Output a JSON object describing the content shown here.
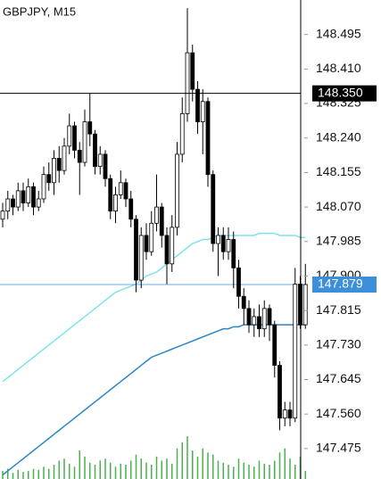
{
  "chart_data": {
    "type": "candlestick",
    "title": "GBPJPY, M15",
    "open": [
      148.04,
      148.06,
      148.09,
      148.07,
      148.11,
      148.08,
      148.12,
      148.07,
      148.09,
      148.15,
      148.13,
      148.19,
      148.16,
      148.22,
      148.27,
      148.21,
      148.18,
      148.28,
      148.25,
      148.17,
      148.2,
      148.14,
      148.06,
      148.1,
      148.13,
      148.09,
      148.04,
      147.89,
      148.0,
      147.96,
      148.03,
      148.07,
      148.0,
      147.93,
      148.02,
      148.2,
      148.3,
      148.45,
      148.36,
      148.28,
      148.33,
      148.15,
      147.98,
      148.0,
      147.96,
      147.99,
      147.92,
      147.85,
      147.82,
      147.78,
      147.8,
      147.77,
      147.82,
      147.78,
      147.68,
      147.55,
      147.57,
      147.55,
      147.88,
      147.78
    ],
    "high": [
      148.08,
      148.11,
      148.1,
      148.13,
      148.13,
      148.14,
      148.13,
      148.11,
      148.17,
      148.18,
      148.21,
      148.22,
      148.24,
      148.3,
      148.28,
      148.23,
      148.31,
      148.35,
      148.26,
      148.22,
      148.21,
      148.15,
      148.12,
      148.16,
      148.14,
      148.11,
      148.05,
      148.02,
      148.03,
      148.06,
      148.15,
      148.08,
      148.02,
      148.05,
      148.23,
      148.34,
      148.56,
      148.47,
      148.38,
      148.36,
      148.34,
      148.16,
      148.02,
      148.02,
      148.02,
      148.01,
      147.94,
      147.87,
      147.84,
      147.82,
      147.83,
      147.84,
      147.83,
      147.79,
      147.69,
      147.59,
      147.59,
      147.92,
      147.9,
      147.93
    ],
    "low": [
      148.02,
      148.04,
      148.05,
      148.06,
      148.06,
      148.07,
      148.05,
      148.06,
      148.08,
      148.11,
      148.1,
      148.13,
      148.15,
      148.2,
      148.19,
      148.1,
      148.17,
      148.22,
      148.15,
      148.15,
      148.12,
      148.04,
      148.03,
      148.09,
      148.07,
      148.02,
      147.86,
      147.87,
      147.94,
      147.95,
      148.01,
      147.97,
      147.88,
      147.91,
      148.0,
      148.18,
      148.28,
      148.33,
      148.25,
      148.2,
      148.12,
      147.96,
      147.9,
      147.94,
      147.94,
      147.87,
      147.82,
      147.78,
      147.76,
      147.75,
      147.75,
      147.75,
      147.74,
      147.65,
      147.52,
      147.53,
      147.53,
      147.54,
      147.77,
      147.77
    ],
    "close": [
      148.06,
      148.09,
      148.07,
      148.11,
      148.08,
      148.12,
      148.07,
      148.09,
      148.15,
      148.13,
      148.19,
      148.16,
      148.22,
      148.27,
      148.21,
      148.18,
      148.28,
      148.25,
      148.17,
      148.2,
      148.14,
      148.06,
      148.1,
      148.13,
      148.09,
      148.04,
      147.89,
      148.0,
      147.96,
      148.03,
      148.07,
      148.0,
      147.93,
      148.02,
      148.2,
      148.3,
      148.45,
      148.36,
      148.28,
      148.33,
      148.15,
      147.98,
      148.0,
      147.96,
      147.99,
      147.92,
      147.85,
      147.82,
      147.78,
      147.8,
      147.77,
      147.82,
      147.78,
      147.68,
      147.55,
      147.57,
      147.55,
      147.88,
      147.78,
      147.879
    ],
    "up_color": "#ffffff",
    "down_color": "#000000",
    "overlays": [
      {
        "color": "#7fe3ef",
        "values": [
          147.64,
          147.65,
          147.66,
          147.67,
          147.68,
          147.69,
          147.7,
          147.71,
          147.72,
          147.73,
          147.74,
          147.75,
          147.76,
          147.77,
          147.78,
          147.79,
          147.8,
          147.81,
          147.82,
          147.83,
          147.84,
          147.85,
          147.86,
          147.865,
          147.87,
          147.875,
          147.88,
          147.89,
          147.9,
          147.905,
          147.91,
          147.92,
          147.93,
          147.94,
          147.95,
          147.96,
          147.97,
          147.98,
          147.985,
          147.99,
          147.99,
          147.995,
          148.0,
          148.0,
          148.0,
          148.0,
          148.0,
          148.0,
          148.0,
          148.0,
          148.005,
          148.005,
          148.005,
          148.005,
          148.0,
          148.0,
          148.0,
          148.0,
          147.995,
          147.995
        ]
      },
      {
        "color": "#2a86c6",
        "values": [
          147.41,
          147.42,
          147.43,
          147.44,
          147.45,
          147.46,
          147.47,
          147.48,
          147.49,
          147.5,
          147.51,
          147.52,
          147.53,
          147.54,
          147.55,
          147.56,
          147.57,
          147.58,
          147.59,
          147.6,
          147.61,
          147.62,
          147.63,
          147.64,
          147.65,
          147.66,
          147.67,
          147.68,
          147.69,
          147.7,
          147.705,
          147.71,
          147.715,
          147.72,
          147.725,
          147.73,
          147.735,
          147.74,
          147.745,
          147.75,
          147.755,
          147.76,
          147.765,
          147.77,
          147.77,
          147.775,
          147.775,
          147.78,
          147.78,
          147.78,
          147.78,
          147.78,
          147.78,
          147.78,
          147.78,
          147.78,
          147.78,
          147.78,
          147.78,
          147.78
        ]
      }
    ],
    "volume": {
      "color": "#4caf50",
      "values": [
        8,
        10,
        6,
        9,
        7,
        8,
        10,
        9,
        12,
        10,
        14,
        18,
        20,
        15,
        12,
        28,
        22,
        16,
        14,
        18,
        20,
        16,
        12,
        15,
        14,
        18,
        24,
        20,
        16,
        14,
        22,
        18,
        20,
        15,
        30,
        36,
        42,
        28,
        22,
        30,
        26,
        24,
        18,
        16,
        14,
        12,
        20,
        16,
        14,
        12,
        18,
        15,
        14,
        18,
        26,
        30,
        20,
        14,
        22,
        8
      ]
    },
    "ylim": [
      147.4,
      148.58
    ],
    "yticks": [
      148.495,
      {
        "value": 148.41,
        "label": "148.410"
      },
      148.325,
      {
        "value": 148.24,
        "label": "148.240"
      },
      148.155,
      {
        "value": 148.07,
        "label": "148.070"
      },
      147.985,
      {
        "value": 147.9,
        "label": "147.900"
      },
      147.815,
      {
        "value": 147.73,
        "label": "147.730"
      },
      147.645,
      {
        "value": 147.56,
        "label": "147.560"
      },
      147.475
    ],
    "crosshair_price": {
      "value": 148.35,
      "label": "148.350",
      "color": "#000000"
    },
    "current_price": {
      "value": 147.879,
      "color": "#3d8fd9"
    }
  }
}
